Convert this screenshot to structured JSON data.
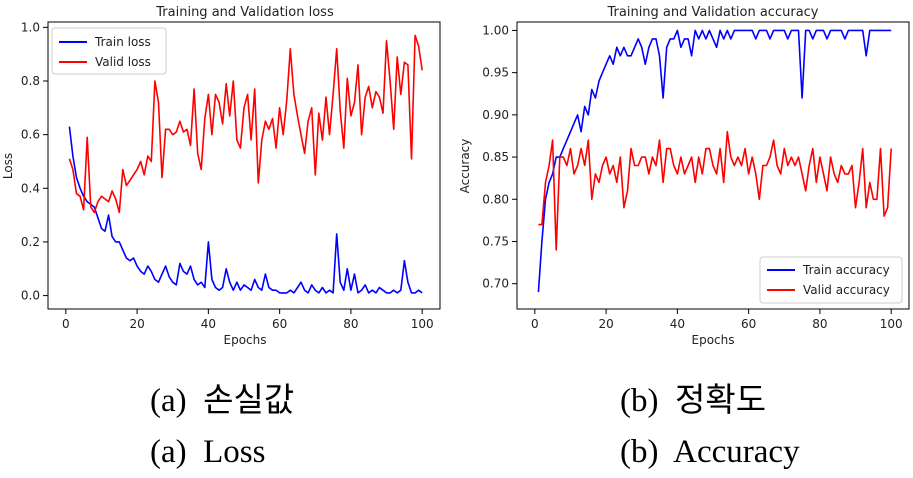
{
  "chart_data": [
    {
      "type": "line",
      "title": "Training and Validation loss",
      "xlabel": "Epochs",
      "ylabel": "Loss",
      "xlim": [
        -5,
        105
      ],
      "ylim": [
        -0.05,
        1.02
      ],
      "xticks": [
        0,
        20,
        40,
        60,
        80,
        100
      ],
      "yticks": [
        0.0,
        0.2,
        0.4,
        0.6,
        0.8,
        1.0
      ],
      "xtick_labels": [
        "0",
        "20",
        "40",
        "60",
        "80",
        "100"
      ],
      "ytick_labels": [
        "0.0",
        "0.2",
        "0.4",
        "0.6",
        "0.8",
        "1.0"
      ],
      "grid": false,
      "legend_position": "top-left",
      "series": [
        {
          "name": "Train loss",
          "color": "#0000ff",
          "x": [
            1,
            2,
            3,
            4,
            5,
            6,
            7,
            8,
            9,
            10,
            11,
            12,
            13,
            14,
            15,
            16,
            17,
            18,
            19,
            20,
            21,
            22,
            23,
            24,
            25,
            26,
            27,
            28,
            29,
            30,
            31,
            32,
            33,
            34,
            35,
            36,
            37,
            38,
            39,
            40,
            41,
            42,
            43,
            44,
            45,
            46,
            47,
            48,
            49,
            50,
            51,
            52,
            53,
            54,
            55,
            56,
            57,
            58,
            59,
            60,
            61,
            62,
            63,
            64,
            65,
            66,
            67,
            68,
            69,
            70,
            71,
            72,
            73,
            74,
            75,
            76,
            77,
            78,
            79,
            80,
            81,
            82,
            83,
            84,
            85,
            86,
            87,
            88,
            89,
            90,
            91,
            92,
            93,
            94,
            95,
            96,
            97,
            98,
            99,
            100
          ],
          "y": [
            0.63,
            0.52,
            0.44,
            0.4,
            0.37,
            0.35,
            0.34,
            0.33,
            0.29,
            0.25,
            0.24,
            0.3,
            0.22,
            0.2,
            0.2,
            0.17,
            0.14,
            0.13,
            0.14,
            0.11,
            0.09,
            0.08,
            0.11,
            0.09,
            0.06,
            0.05,
            0.08,
            0.11,
            0.07,
            0.05,
            0.04,
            0.12,
            0.09,
            0.08,
            0.11,
            0.06,
            0.04,
            0.05,
            0.03,
            0.2,
            0.06,
            0.03,
            0.02,
            0.03,
            0.1,
            0.05,
            0.02,
            0.05,
            0.02,
            0.04,
            0.03,
            0.02,
            0.06,
            0.03,
            0.02,
            0.08,
            0.03,
            0.02,
            0.02,
            0.01,
            0.01,
            0.01,
            0.02,
            0.01,
            0.03,
            0.05,
            0.02,
            0.01,
            0.04,
            0.02,
            0.01,
            0.03,
            0.01,
            0.02,
            0.01,
            0.23,
            0.05,
            0.02,
            0.1,
            0.02,
            0.08,
            0.01,
            0.02,
            0.04,
            0.01,
            0.02,
            0.01,
            0.03,
            0.02,
            0.01,
            0.01,
            0.02,
            0.01,
            0.02,
            0.13,
            0.05,
            0.01,
            0.01,
            0.02,
            0.01
          ]
        },
        {
          "name": "Valid loss",
          "color": "#ff0000",
          "x": [
            1,
            2,
            3,
            4,
            5,
            6,
            7,
            8,
            9,
            10,
            11,
            12,
            13,
            14,
            15,
            16,
            17,
            18,
            19,
            20,
            21,
            22,
            23,
            24,
            25,
            26,
            27,
            28,
            29,
            30,
            31,
            32,
            33,
            34,
            35,
            36,
            37,
            38,
            39,
            40,
            41,
            42,
            43,
            44,
            45,
            46,
            47,
            48,
            49,
            50,
            51,
            52,
            53,
            54,
            55,
            56,
            57,
            58,
            59,
            60,
            61,
            62,
            63,
            64,
            65,
            66,
            67,
            68,
            69,
            70,
            71,
            72,
            73,
            74,
            75,
            76,
            77,
            78,
            79,
            80,
            81,
            82,
            83,
            84,
            85,
            86,
            87,
            88,
            89,
            90,
            91,
            92,
            93,
            94,
            95,
            96,
            97,
            98,
            99,
            100
          ],
          "y": [
            0.51,
            0.47,
            0.38,
            0.37,
            0.32,
            0.59,
            0.33,
            0.31,
            0.35,
            0.37,
            0.36,
            0.35,
            0.39,
            0.36,
            0.31,
            0.47,
            0.41,
            0.43,
            0.45,
            0.47,
            0.5,
            0.45,
            0.52,
            0.5,
            0.8,
            0.72,
            0.44,
            0.62,
            0.62,
            0.6,
            0.61,
            0.65,
            0.61,
            0.62,
            0.56,
            0.77,
            0.53,
            0.47,
            0.66,
            0.75,
            0.6,
            0.75,
            0.72,
            0.64,
            0.79,
            0.67,
            0.8,
            0.58,
            0.55,
            0.7,
            0.75,
            0.58,
            0.77,
            0.42,
            0.58,
            0.65,
            0.62,
            0.66,
            0.55,
            0.7,
            0.6,
            0.73,
            0.92,
            0.75,
            0.67,
            0.6,
            0.53,
            0.65,
            0.7,
            0.45,
            0.68,
            0.58,
            0.74,
            0.6,
            0.75,
            0.92,
            0.69,
            0.55,
            0.81,
            0.67,
            0.72,
            0.86,
            0.6,
            0.74,
            0.78,
            0.7,
            0.76,
            0.74,
            0.68,
            0.95,
            0.8,
            0.62,
            0.89,
            0.75,
            0.87,
            0.86,
            0.51,
            0.97,
            0.93,
            0.84
          ]
        }
      ]
    },
    {
      "type": "line",
      "title": "Training and Validation accuracy",
      "xlabel": "Epochs",
      "ylabel": "Accuracy",
      "xlim": [
        -5,
        105
      ],
      "ylim": [
        0.67,
        1.01
      ],
      "xticks": [
        0,
        20,
        40,
        60,
        80,
        100
      ],
      "yticks": [
        0.7,
        0.75,
        0.8,
        0.85,
        0.9,
        0.95,
        1.0
      ],
      "xtick_labels": [
        "0",
        "20",
        "40",
        "60",
        "80",
        "100"
      ],
      "ytick_labels": [
        "0.70",
        "0.75",
        "0.80",
        "0.85",
        "0.90",
        "0.95",
        "1.00"
      ],
      "grid": false,
      "legend_position": "bottom-right",
      "series": [
        {
          "name": "Train accuracy",
          "color": "#0000ff",
          "x": [
            1,
            2,
            3,
            4,
            5,
            6,
            7,
            8,
            9,
            10,
            11,
            12,
            13,
            14,
            15,
            16,
            17,
            18,
            19,
            20,
            21,
            22,
            23,
            24,
            25,
            26,
            27,
            28,
            29,
            30,
            31,
            32,
            33,
            34,
            35,
            36,
            37,
            38,
            39,
            40,
            41,
            42,
            43,
            44,
            45,
            46,
            47,
            48,
            49,
            50,
            51,
            52,
            53,
            54,
            55,
            56,
            57,
            58,
            59,
            60,
            61,
            62,
            63,
            64,
            65,
            66,
            67,
            68,
            69,
            70,
            71,
            72,
            73,
            74,
            75,
            76,
            77,
            78,
            79,
            80,
            81,
            82,
            83,
            84,
            85,
            86,
            87,
            88,
            89,
            90,
            91,
            92,
            93,
            94,
            95,
            96,
            97,
            98,
            99,
            100
          ],
          "y": [
            0.69,
            0.75,
            0.8,
            0.82,
            0.83,
            0.85,
            0.85,
            0.86,
            0.87,
            0.88,
            0.89,
            0.9,
            0.88,
            0.91,
            0.9,
            0.93,
            0.92,
            0.94,
            0.95,
            0.96,
            0.97,
            0.96,
            0.98,
            0.97,
            0.98,
            0.97,
            0.97,
            0.98,
            0.99,
            0.98,
            0.96,
            0.98,
            0.99,
            0.99,
            0.97,
            0.92,
            0.98,
            0.99,
            0.99,
            1.0,
            0.98,
            0.99,
            0.99,
            0.97,
            1.0,
            0.99,
            1.0,
            0.99,
            1.0,
            0.99,
            0.98,
            1.0,
            0.99,
            1.0,
            0.99,
            1.0,
            1.0,
            1.0,
            1.0,
            1.0,
            1.0,
            0.99,
            1.0,
            1.0,
            1.0,
            0.99,
            1.0,
            1.0,
            1.0,
            1.0,
            0.99,
            1.0,
            1.0,
            1.0,
            0.92,
            1.0,
            1.0,
            0.99,
            1.0,
            1.0,
            1.0,
            0.99,
            1.0,
            1.0,
            1.0,
            1.0,
            0.99,
            1.0,
            1.0,
            1.0,
            1.0,
            1.0,
            0.97,
            1.0,
            1.0,
            1.0,
            1.0,
            1.0,
            1.0,
            1.0
          ]
        },
        {
          "name": "Valid accuracy",
          "color": "#ff0000",
          "x": [
            1,
            2,
            3,
            4,
            5,
            6,
            7,
            8,
            9,
            10,
            11,
            12,
            13,
            14,
            15,
            16,
            17,
            18,
            19,
            20,
            21,
            22,
            23,
            24,
            25,
            26,
            27,
            28,
            29,
            30,
            31,
            32,
            33,
            34,
            35,
            36,
            37,
            38,
            39,
            40,
            41,
            42,
            43,
            44,
            45,
            46,
            47,
            48,
            49,
            50,
            51,
            52,
            53,
            54,
            55,
            56,
            57,
            58,
            59,
            60,
            61,
            62,
            63,
            64,
            65,
            66,
            67,
            68,
            69,
            70,
            71,
            72,
            73,
            74,
            75,
            76,
            77,
            78,
            79,
            80,
            81,
            82,
            83,
            84,
            85,
            86,
            87,
            88,
            89,
            90,
            91,
            92,
            93,
            94,
            95,
            96,
            97,
            98,
            99,
            100
          ],
          "y": [
            0.77,
            0.77,
            0.82,
            0.84,
            0.87,
            0.74,
            0.85,
            0.85,
            0.84,
            0.86,
            0.83,
            0.84,
            0.86,
            0.84,
            0.87,
            0.8,
            0.83,
            0.82,
            0.84,
            0.85,
            0.83,
            0.84,
            0.82,
            0.85,
            0.79,
            0.81,
            0.86,
            0.84,
            0.84,
            0.85,
            0.85,
            0.83,
            0.85,
            0.84,
            0.87,
            0.82,
            0.86,
            0.86,
            0.84,
            0.83,
            0.85,
            0.83,
            0.84,
            0.85,
            0.82,
            0.85,
            0.83,
            0.86,
            0.86,
            0.84,
            0.83,
            0.86,
            0.82,
            0.88,
            0.85,
            0.84,
            0.85,
            0.84,
            0.86,
            0.83,
            0.85,
            0.83,
            0.8,
            0.84,
            0.84,
            0.85,
            0.87,
            0.84,
            0.83,
            0.86,
            0.84,
            0.85,
            0.84,
            0.85,
            0.83,
            0.81,
            0.84,
            0.86,
            0.82,
            0.85,
            0.83,
            0.81,
            0.85,
            0.83,
            0.82,
            0.84,
            0.83,
            0.83,
            0.84,
            0.79,
            0.82,
            0.86,
            0.79,
            0.82,
            0.8,
            0.8,
            0.86,
            0.78,
            0.79,
            0.86
          ]
        }
      ]
    }
  ],
  "captions": {
    "a_label": "(a)",
    "a_korean": "손실값",
    "a_english": "Loss",
    "b_label": "(b)",
    "b_korean": "정확도",
    "b_english": "Accuracy"
  }
}
